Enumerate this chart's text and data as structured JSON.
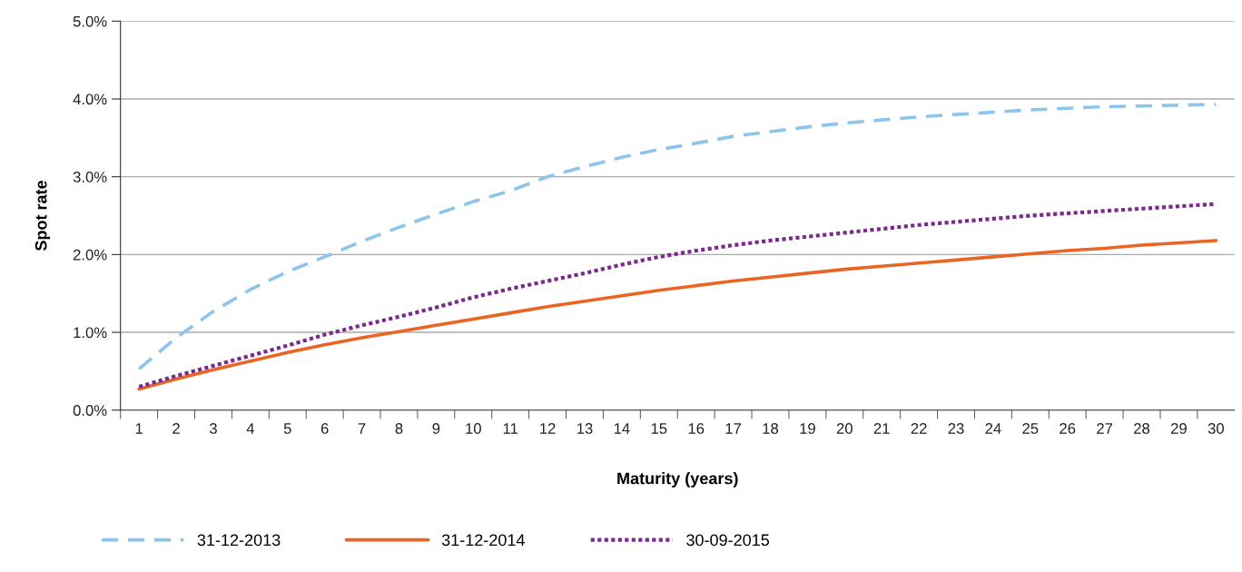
{
  "chart_data": {
    "type": "line",
    "xlabel": "Maturity (years)",
    "ylabel": "Spot rate",
    "categories": [
      "1",
      "2",
      "3",
      "4",
      "5",
      "6",
      "7",
      "8",
      "9",
      "10",
      "11",
      "12",
      "13",
      "14",
      "15",
      "16",
      "17",
      "18",
      "19",
      "20",
      "21",
      "22",
      "23",
      "24",
      "25",
      "26",
      "27",
      "28",
      "29",
      "30"
    ],
    "series": [
      {
        "name": "31-12-2013",
        "color": "#8cc4ec",
        "line_style": "dashed",
        "values": [
          0.53,
          0.93,
          1.27,
          1.55,
          1.78,
          1.97,
          2.17,
          2.35,
          2.52,
          2.68,
          2.82,
          3.0,
          3.13,
          3.25,
          3.35,
          3.43,
          3.52,
          3.58,
          3.64,
          3.69,
          3.73,
          3.77,
          3.8,
          3.83,
          3.86,
          3.88,
          3.9,
          3.91,
          3.92,
          3.93
        ]
      },
      {
        "name": "31-12-2014",
        "color": "#ea6424",
        "line_style": "solid",
        "values": [
          0.27,
          0.4,
          0.52,
          0.63,
          0.74,
          0.84,
          0.93,
          1.01,
          1.09,
          1.17,
          1.25,
          1.33,
          1.4,
          1.47,
          1.54,
          1.6,
          1.66,
          1.71,
          1.76,
          1.81,
          1.85,
          1.89,
          1.93,
          1.97,
          2.01,
          2.05,
          2.08,
          2.12,
          2.15,
          2.18
        ]
      },
      {
        "name": "30-09-2015",
        "color": "#7b2a8c",
        "line_style": "dotted",
        "values": [
          0.3,
          0.44,
          0.57,
          0.7,
          0.83,
          0.97,
          1.09,
          1.2,
          1.32,
          1.45,
          1.56,
          1.66,
          1.76,
          1.87,
          1.97,
          2.05,
          2.12,
          2.18,
          2.23,
          2.28,
          2.33,
          2.38,
          2.42,
          2.46,
          2.5,
          2.53,
          2.56,
          2.59,
          2.62,
          2.65
        ]
      }
    ],
    "ylim": [
      0,
      5
    ],
    "yticks": [
      {
        "value": 0,
        "label": "0.0%"
      },
      {
        "value": 1,
        "label": "1.0%"
      },
      {
        "value": 2,
        "label": "2.0%"
      },
      {
        "value": 3,
        "label": "3.0%"
      },
      {
        "value": 4,
        "label": "4.0%"
      },
      {
        "value": 5,
        "label": "5.0%"
      }
    ],
    "grid": "y",
    "legend": "bottom left",
    "marker": "none"
  }
}
